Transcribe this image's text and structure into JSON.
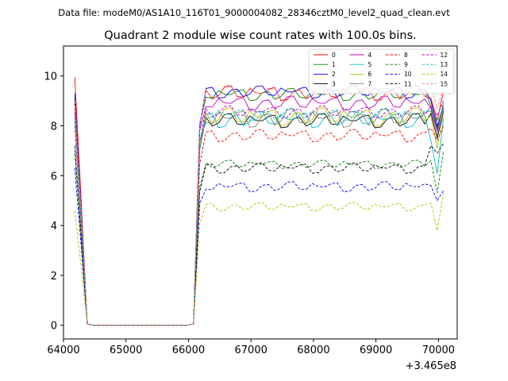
{
  "header_text": "Data file: modeM0/AS1A10_116T01_9000004082_28346cztM0_level2_quad_clean.evt",
  "chart_data": {
    "type": "line",
    "title": "Quadrant 2 module wise count rates with 100.0s bins.",
    "xlabel": "",
    "ylabel": "",
    "x_offset_label": "+3.465e8",
    "xlim": [
      64000,
      70300
    ],
    "ylim": [
      -0.55,
      11.2
    ],
    "xticks": [
      64000,
      65000,
      66000,
      67000,
      68000,
      69000,
      70000
    ],
    "xtick_labels": [
      "64000",
      "65000",
      "66000",
      "67000",
      "68000",
      "69000",
      "70000"
    ],
    "yticks": [
      0,
      2,
      4,
      6,
      8,
      10
    ],
    "ytick_labels": [
      "0",
      "2",
      "4",
      "6",
      "8",
      "10"
    ],
    "grid": false,
    "legend_position": "top-right",
    "legend_columns": 4,
    "x_start": 64180,
    "x_step": 100,
    "x_count": 60,
    "series": [
      {
        "name": "0",
        "color": "#ff0000",
        "dash": "solid",
        "lead": 9.95,
        "level": 9.3,
        "spread": 0.35,
        "tail": [
          9.1,
          8.2,
          9.4
        ]
      },
      {
        "name": "1",
        "color": "#008000",
        "dash": "solid",
        "lead": 9.1,
        "level": 9.25,
        "spread": 0.3,
        "tail": [
          8.8,
          7.9,
          8.9
        ]
      },
      {
        "name": "2",
        "color": "#0000ff",
        "dash": "solid",
        "lead": 9.3,
        "level": 9.35,
        "spread": 0.3,
        "tail": [
          9.0,
          8.0,
          8.7
        ]
      },
      {
        "name": "3",
        "color": "#000000",
        "dash": "solid",
        "lead": 8.9,
        "level": 8.2,
        "spread": 0.35,
        "tail": [
          8.5,
          7.5,
          8.6
        ]
      },
      {
        "name": "4",
        "color": "#bf00bf",
        "dash": "solid",
        "lead": 8.7,
        "level": 8.9,
        "spread": 0.35,
        "tail": [
          8.7,
          7.8,
          8.8
        ]
      },
      {
        "name": "5",
        "color": "#00bfbf",
        "dash": "solid",
        "lead": 8.4,
        "level": 8.25,
        "spread": 0.4,
        "tail": [
          7.4,
          6.1,
          8.3
        ]
      },
      {
        "name": "6",
        "color": "#bfbf00",
        "dash": "solid",
        "lead": 8.6,
        "level": 8.35,
        "spread": 0.45,
        "tail": [
          8.4,
          7.1,
          8.5
        ]
      },
      {
        "name": "7",
        "color": "#808080",
        "dash": "solid",
        "lead": 8.8,
        "level": 8.3,
        "spread": 0.45,
        "tail": [
          8.6,
          7.6,
          8.9
        ]
      },
      {
        "name": "8",
        "color": "#ff0000",
        "dash": "dashed",
        "lead": 8.0,
        "level": 7.6,
        "spread": 0.3,
        "tail": [
          7.9,
          7.4,
          8.0
        ]
      },
      {
        "name": "9",
        "color": "#008000",
        "dash": "dashed",
        "lead": 6.9,
        "level": 6.45,
        "spread": 0.2,
        "tail": [
          6.6,
          5.3,
          7.0
        ]
      },
      {
        "name": "10",
        "color": "#0000ff",
        "dash": "dashed",
        "lead": 6.3,
        "level": 5.55,
        "spread": 0.25,
        "tail": [
          5.6,
          5.0,
          5.4
        ]
      },
      {
        "name": "11",
        "color": "#000000",
        "dash": "dashed",
        "lead": 7.2,
        "level": 6.3,
        "spread": 0.25,
        "tail": [
          7.2,
          6.9,
          7.3
        ]
      },
      {
        "name": "12",
        "color": "#bf00bf",
        "dash": "dashed",
        "lead": 8.5,
        "level": 8.55,
        "spread": 0.3,
        "tail": [
          8.8,
          8.4,
          9.0
        ]
      },
      {
        "name": "13",
        "color": "#00bfbf",
        "dash": "dashed",
        "lead": 8.2,
        "level": 8.45,
        "spread": 0.3,
        "tail": [
          8.6,
          8.2,
          8.7
        ]
      },
      {
        "name": "14",
        "color": "#bfbf00",
        "dash": "dashed",
        "lead": 4.6,
        "level": 4.75,
        "spread": 0.2,
        "tail": [
          4.9,
          3.8,
          5.3
        ]
      },
      {
        "name": "15",
        "color": "#ff8080",
        "dash": "dashed",
        "lead": 9.0,
        "level": 9.3,
        "spread": 0.4,
        "tail": [
          9.6,
          8.7,
          9.5
        ]
      }
    ]
  }
}
